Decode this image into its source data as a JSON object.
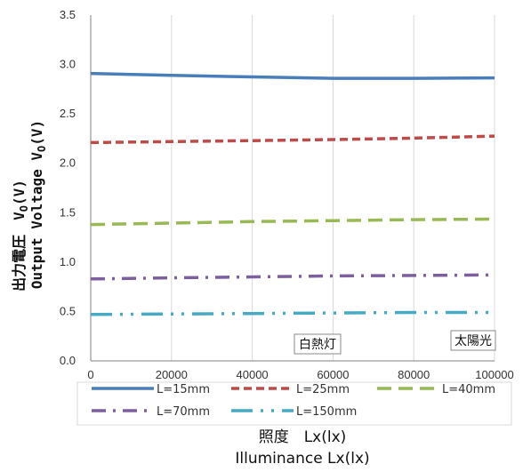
{
  "chart_data": {
    "type": "line",
    "title": "",
    "xlabel_jp": "照度　Lx(lx)",
    "xlabel_en": "Illuminance  Lx(lx)",
    "ylabel_jp": "出力電圧　V",
    "ylabel_en": "Output Voltage  V",
    "ylabel_sub": "O",
    "ylabel_unit": "(V)",
    "xlim": [
      0,
      100000
    ],
    "ylim": [
      0,
      3.5
    ],
    "x_ticks": [
      0,
      20000,
      40000,
      60000,
      80000,
      100000
    ],
    "y_ticks": [
      0.0,
      0.5,
      1.0,
      1.5,
      2.0,
      2.5,
      3.0,
      3.5
    ],
    "y_tick_labels": [
      "0.0",
      "0.5",
      "1.0",
      "1.5",
      "2.0",
      "2.5",
      "3.0",
      "3.5"
    ],
    "x_tick_labels": [
      "0",
      "20000",
      "40000",
      "60000",
      "80000",
      "100000"
    ],
    "grid": "vertical",
    "legend_position": "bottom",
    "x": [
      0,
      20000,
      40000,
      60000,
      80000,
      100000
    ],
    "series": [
      {
        "name": "L=15mm",
        "color": "#4a7ebb",
        "dash": "solid",
        "values": [
          2.91,
          2.89,
          2.875,
          2.86,
          2.86,
          2.865
        ]
      },
      {
        "name": "L=25mm",
        "color": "#be4b48",
        "dash": "dash",
        "values": [
          2.21,
          2.22,
          2.23,
          2.24,
          2.255,
          2.275
        ]
      },
      {
        "name": "L=40mm",
        "color": "#98b954",
        "dash": "longdash",
        "values": [
          1.38,
          1.395,
          1.41,
          1.42,
          1.43,
          1.435
        ]
      },
      {
        "name": "L=70mm",
        "color": "#7d5fa0",
        "dash": "dashdot",
        "values": [
          0.83,
          0.84,
          0.85,
          0.86,
          0.865,
          0.87
        ]
      },
      {
        "name": "L=150mm",
        "color": "#46aac5",
        "dash": "longdashdot",
        "values": [
          0.47,
          0.475,
          0.48,
          0.485,
          0.49,
          0.49
        ]
      }
    ],
    "annotations": [
      {
        "text": "白熱灯",
        "x": 60000
      },
      {
        "text": "太陽光",
        "x": 100000
      }
    ]
  }
}
